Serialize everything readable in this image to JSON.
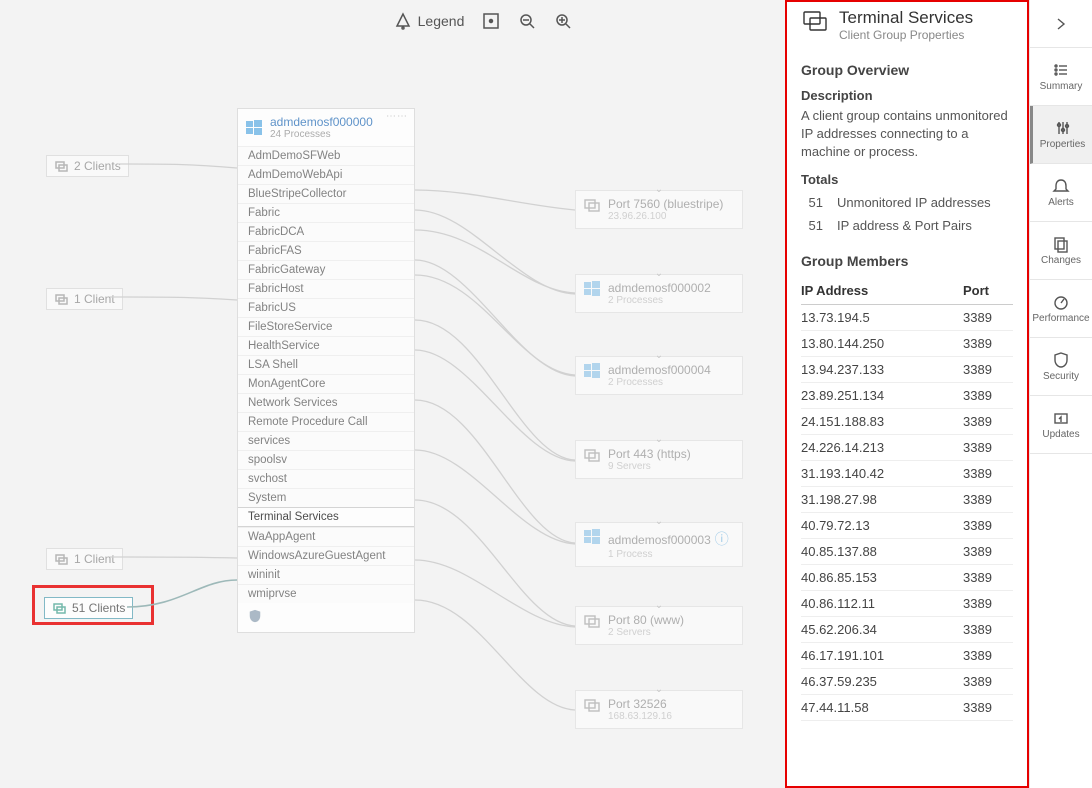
{
  "toolbar": {
    "legend_label": "Legend"
  },
  "rail": {
    "summary": "Summary",
    "properties": "Properties",
    "alerts": "Alerts",
    "changes": "Changes",
    "performance": "Performance",
    "security": "Security",
    "updates": "Updates"
  },
  "panel": {
    "title": "Terminal Services",
    "subtitle": "Client Group Properties",
    "overview_h": "Group Overview",
    "description_h": "Description",
    "description": "A client group contains unmonitored IP addresses connecting to a machine or process.",
    "totals_h": "Totals",
    "totals": [
      {
        "n": "51",
        "label": "Unmonitored IP addresses"
      },
      {
        "n": "51",
        "label": "IP address & Port Pairs"
      }
    ],
    "members_h": "Group Members",
    "col_ip": "IP Address",
    "col_port": "Port",
    "rows": [
      {
        "ip": "13.73.194.5",
        "port": "3389"
      },
      {
        "ip": "13.80.144.250",
        "port": "3389"
      },
      {
        "ip": "13.94.237.133",
        "port": "3389"
      },
      {
        "ip": "23.89.251.134",
        "port": "3389"
      },
      {
        "ip": "24.151.188.83",
        "port": "3389"
      },
      {
        "ip": "24.226.14.213",
        "port": "3389"
      },
      {
        "ip": "31.193.140.42",
        "port": "3389"
      },
      {
        "ip": "31.198.27.98",
        "port": "3389"
      },
      {
        "ip": "40.79.72.13",
        "port": "3389"
      },
      {
        "ip": "40.85.137.88",
        "port": "3389"
      },
      {
        "ip": "40.86.85.153",
        "port": "3389"
      },
      {
        "ip": "40.86.112.11",
        "port": "3389"
      },
      {
        "ip": "45.62.206.34",
        "port": "3389"
      },
      {
        "ip": "46.17.191.101",
        "port": "3389"
      },
      {
        "ip": "46.37.59.235",
        "port": "3389"
      },
      {
        "ip": "47.44.11.58",
        "port": "3389"
      }
    ]
  },
  "clients": {
    "two": "2 Clients",
    "one": "1 Client",
    "one2": "1 Client",
    "fiftyone": "51 Clients"
  },
  "machine": {
    "name": "admdemosf000000",
    "sub": "24 Processes",
    "procs": [
      "AdmDemoSFWeb",
      "AdmDemoWebApi",
      "BlueStripeCollector",
      "Fabric",
      "FabricDCA",
      "FabricFAS",
      "FabricGateway",
      "FabricHost",
      "FabricUS",
      "FileStoreService",
      "HealthService",
      "LSA Shell",
      "MonAgentCore",
      "Network Services",
      "Remote Procedure Call",
      "services",
      "spoolsv",
      "svchost",
      "System",
      "Terminal Services",
      "WaAppAgent",
      "WindowsAzureGuestAgent",
      "wininit",
      "wmiprvse"
    ],
    "selected_index": 19
  },
  "right_nodes": [
    {
      "title": "Port 7560 (bluestripe)",
      "sub": "23.96.26.100",
      "type": "port"
    },
    {
      "title": "admdemosf000002",
      "sub": "2 Processes",
      "type": "machine"
    },
    {
      "title": "admdemosf000004",
      "sub": "2 Processes",
      "type": "machine"
    },
    {
      "title": "Port 443 (https)",
      "sub": "9 Servers",
      "type": "port"
    },
    {
      "title": "admdemosf000003",
      "sub": "1 Process",
      "type": "machine",
      "info": true
    },
    {
      "title": "Port 80 (www)",
      "sub": "2 Servers",
      "type": "port"
    },
    {
      "title": "Port 32526",
      "sub": "168.63.129.16",
      "type": "port"
    }
  ]
}
